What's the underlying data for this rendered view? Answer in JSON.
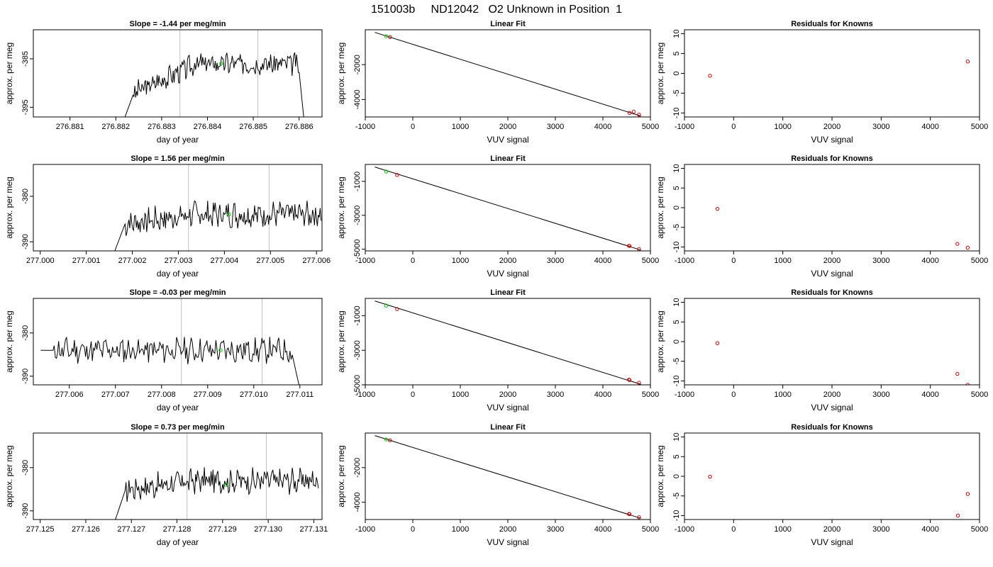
{
  "figure_title": "151003b     ND12042   O2 Unknown in Position  1",
  "colors": {
    "trace": "#000000",
    "green": "#00cc00",
    "red": "#cc0000",
    "vline": "#c0c0c0",
    "fit": "#000000"
  },
  "chart_data": [
    {
      "type": "line",
      "row": 0,
      "col": 0,
      "title": "Slope =  -1.44  per meg/min",
      "xlabel": "day of year",
      "ylabel": "approx. per meg",
      "xlim": [
        276.8802,
        276.8865
      ],
      "ylim": [
        -397,
        -379
      ],
      "xticks": [
        276.881,
        276.882,
        276.883,
        276.884,
        276.885,
        276.886
      ],
      "xtick_labels": [
        "276.881",
        "276.882",
        "276.883",
        "276.884",
        "276.885",
        "276.886"
      ],
      "yticks": [
        -395,
        -385
      ],
      "ytick_labels": [
        "-395",
        "-385"
      ],
      "vlines": [
        276.8834,
        276.8851
      ],
      "trace": {
        "x_start": 276.8822,
        "x_end": 276.8861,
        "n": 200,
        "enter_y": -397,
        "base_y": -392,
        "plateau_y": -386,
        "exit_y": -397,
        "noise": 1.2,
        "seed": 3
      },
      "green_point": [
        276.8843,
        -386
      ]
    },
    {
      "type": "scatter",
      "row": 0,
      "col": 1,
      "title": "Linear Fit",
      "xlabel": "VUV signal",
      "ylabel": "approx. per meg",
      "xlim": [
        -1000,
        5000
      ],
      "ylim": [
        -5000,
        0
      ],
      "xticks": [
        -1000,
        0,
        1000,
        2000,
        3000,
        4000,
        5000
      ],
      "xtick_labels": [
        "-1000",
        "0",
        "1000",
        "2000",
        "3000",
        "4000",
        "5000"
      ],
      "yticks": [
        -4000,
        -2000
      ],
      "ytick_labels": [
        "-4000",
        "-2000"
      ],
      "fit_line": [
        [
          -800,
          -150
        ],
        [
          4800,
          -4950
        ]
      ],
      "red_points": [
        [
          -480,
          -420
        ],
        [
          4560,
          -4770
        ],
        [
          4650,
          -4700
        ],
        [
          4760,
          -4870
        ]
      ],
      "green_points": [
        [
          -560,
          -370
        ]
      ]
    },
    {
      "type": "scatter",
      "row": 0,
      "col": 2,
      "title": "Residuals for Knowns",
      "xlabel": "VUV signal",
      "ylabel": "approx. per meg",
      "xlim": [
        -1000,
        5000
      ],
      "ylim": [
        -11,
        11
      ],
      "xticks": [
        -1000,
        0,
        1000,
        2000,
        3000,
        4000,
        5000
      ],
      "xtick_labels": [
        "-1000",
        "0",
        "1000",
        "2000",
        "3000",
        "4000",
        "5000"
      ],
      "yticks": [
        -10,
        -5,
        0,
        5,
        10
      ],
      "ytick_labels": [
        "-10",
        "-5",
        "0",
        "5",
        "10"
      ],
      "red_points": [
        [
          -480,
          -0.6
        ],
        [
          4760,
          3.0
        ]
      ]
    },
    {
      "type": "line",
      "row": 1,
      "col": 0,
      "title": "Slope =  1.56  per meg/min",
      "xlabel": "day of year",
      "ylabel": "approx. per meg",
      "xlim": [
        276.99985,
        277.00612
      ],
      "ylim": [
        -392,
        -373
      ],
      "xticks": [
        277.0,
        277.001,
        277.002,
        277.003,
        277.004,
        277.005,
        277.006
      ],
      "xtick_labels": [
        "277.000",
        "277.001",
        "277.002",
        "277.003",
        "277.004",
        "277.005",
        "277.006"
      ],
      "yticks": [
        -390,
        -380
      ],
      "ytick_labels": [
        "-390",
        "-380"
      ],
      "vlines": [
        277.00322,
        277.00497
      ],
      "trace": {
        "x_start": 277.00162,
        "x_end": 277.0061,
        "n": 220,
        "enter_y": -392,
        "base_y": -386,
        "plateau_y": -384,
        "exit_y": -384,
        "noise": 1.5,
        "seed": 7
      },
      "green_point": [
        277.0041,
        -384
      ]
    },
    {
      "type": "scatter",
      "row": 1,
      "col": 1,
      "title": "Linear Fit",
      "xlabel": "VUV signal",
      "ylabel": "approx. per meg",
      "xlim": [
        -1000,
        5000
      ],
      "ylim": [
        -5100,
        0
      ],
      "xticks": [
        -1000,
        0,
        1000,
        2000,
        3000,
        4000,
        5000
      ],
      "xtick_labels": [
        "-1000",
        "0",
        "1000",
        "2000",
        "3000",
        "4000",
        "5000"
      ],
      "yticks": [
        -5000,
        -3000,
        -1000
      ],
      "ytick_labels": [
        "-5000",
        "-3000",
        "-1000"
      ],
      "fit_line": [
        [
          -800,
          -150
        ],
        [
          4800,
          -5050
        ]
      ],
      "red_points": [
        [
          -330,
          -620
        ],
        [
          4550,
          -4800
        ],
        [
          4560,
          -4810
        ],
        [
          4760,
          -4990
        ]
      ],
      "green_points": [
        [
          -560,
          -420
        ]
      ]
    },
    {
      "type": "scatter",
      "row": 1,
      "col": 2,
      "title": "Residuals for Knowns",
      "xlabel": "VUV signal",
      "ylabel": "approx. per meg",
      "xlim": [
        -1000,
        5000
      ],
      "ylim": [
        -11,
        11
      ],
      "xticks": [
        -1000,
        0,
        1000,
        2000,
        3000,
        4000,
        5000
      ],
      "xtick_labels": [
        "-1000",
        "0",
        "1000",
        "2000",
        "3000",
        "4000",
        "5000"
      ],
      "yticks": [
        -10,
        -5,
        0,
        5,
        10
      ],
      "ytick_labels": [
        "-10",
        "-5",
        "0",
        "5",
        "10"
      ],
      "red_points": [
        [
          -330,
          -0.3
        ],
        [
          4550,
          -9.2
        ],
        [
          4760,
          -10.2
        ]
      ]
    },
    {
      "type": "line",
      "row": 2,
      "col": 0,
      "title": "Slope =  -0.03  per meg/min",
      "xlabel": "day of year",
      "ylabel": "approx. per meg",
      "xlim": [
        277.00522,
        277.01148
      ],
      "ylim": [
        -392,
        -372
      ],
      "xticks": [
        277.006,
        277.007,
        277.008,
        277.009,
        277.01,
        277.011
      ],
      "xtick_labels": [
        "277.006",
        "277.007",
        "277.008",
        "277.009",
        "277.010",
        "277.011"
      ],
      "yticks": [
        -390,
        -380
      ],
      "ytick_labels": [
        "-390",
        "-380"
      ],
      "vlines": [
        277.00843,
        277.01018
      ],
      "trace": {
        "x_start": 277.00538,
        "x_end": 277.01098,
        "n": 230,
        "enter_y": -384,
        "base_y": -384,
        "plateau_y": -384,
        "exit_y": -392,
        "noise": 1.5,
        "seed": 11
      },
      "green_point": [
        277.00928,
        -384
      ]
    },
    {
      "type": "scatter",
      "row": 2,
      "col": 1,
      "title": "Linear Fit",
      "xlabel": "VUV signal",
      "ylabel": "approx. per meg",
      "xlim": [
        -1000,
        5000
      ],
      "ylim": [
        -5000,
        0
      ],
      "xticks": [
        -1000,
        0,
        1000,
        2000,
        3000,
        4000,
        5000
      ],
      "xtick_labels": [
        "-1000",
        "0",
        "1000",
        "2000",
        "3000",
        "4000",
        "5000"
      ],
      "yticks": [
        -5000,
        -3000,
        -1000
      ],
      "ytick_labels": [
        "-5000",
        "-3000",
        "-1000"
      ],
      "fit_line": [
        [
          -800,
          -150
        ],
        [
          4800,
          -4970
        ]
      ],
      "red_points": [
        [
          -330,
          -620
        ],
        [
          4550,
          -4700
        ],
        [
          4560,
          -4720
        ],
        [
          4760,
          -4880
        ]
      ],
      "green_points": [
        [
          -560,
          -420
        ]
      ]
    },
    {
      "type": "scatter",
      "row": 2,
      "col": 2,
      "title": "Residuals for Knowns",
      "xlabel": "VUV signal",
      "ylabel": "approx. per meg",
      "xlim": [
        -1000,
        5000
      ],
      "ylim": [
        -11,
        11
      ],
      "xticks": [
        -1000,
        0,
        1000,
        2000,
        3000,
        4000,
        5000
      ],
      "xtick_labels": [
        "-1000",
        "0",
        "1000",
        "2000",
        "3000",
        "4000",
        "5000"
      ],
      "yticks": [
        -10,
        -5,
        0,
        5,
        10
      ],
      "ytick_labels": [
        "-10",
        "-5",
        "0",
        "5",
        "10"
      ],
      "red_points": [
        [
          -330,
          -0.4
        ],
        [
          4550,
          -8.2
        ],
        [
          4760,
          -11.0
        ]
      ]
    },
    {
      "type": "line",
      "row": 3,
      "col": 0,
      "title": "Slope =  0.73  per meg/min",
      "xlabel": "day of year",
      "ylabel": "approx. per meg",
      "xlim": [
        277.12485,
        277.13118
      ],
      "ylim": [
        -392,
        -372
      ],
      "xticks": [
        277.125,
        277.126,
        277.127,
        277.128,
        277.129,
        277.13,
        277.131
      ],
      "xtick_labels": [
        "277.125",
        "277.126",
        "277.127",
        "277.128",
        "277.129",
        "277.130",
        "277.131"
      ],
      "yticks": [
        -390,
        -380
      ],
      "ytick_labels": [
        "-390",
        "-380"
      ],
      "vlines": [
        277.12822,
        277.12996
      ],
      "trace": {
        "x_start": 277.12665,
        "x_end": 277.1311,
        "n": 210,
        "enter_y": -392,
        "base_y": -385,
        "plateau_y": -383,
        "exit_y": -383,
        "noise": 1.5,
        "seed": 17
      },
      "green_point": [
        277.12908,
        -384
      ]
    },
    {
      "type": "scatter",
      "row": 3,
      "col": 1,
      "title": "Linear Fit",
      "xlabel": "VUV signal",
      "ylabel": "approx. per meg",
      "xlim": [
        -1000,
        5000
      ],
      "ylim": [
        -5000,
        0
      ],
      "xticks": [
        -1000,
        0,
        1000,
        2000,
        3000,
        4000,
        5000
      ],
      "xtick_labels": [
        "-1000",
        "0",
        "1000",
        "2000",
        "3000",
        "4000",
        "5000"
      ],
      "yticks": [
        -4000,
        -2000
      ],
      "ytick_labels": [
        "-4000",
        "-2000"
      ],
      "fit_line": [
        [
          -800,
          -150
        ],
        [
          4800,
          -4930
        ]
      ],
      "red_points": [
        [
          -480,
          -420
        ],
        [
          4550,
          -4680
        ],
        [
          4560,
          -4690
        ],
        [
          4760,
          -4870
        ]
      ],
      "green_points": [
        [
          -560,
          -370
        ]
      ]
    },
    {
      "type": "scatter",
      "row": 3,
      "col": 2,
      "title": "Residuals for Knowns",
      "xlabel": "VUV signal",
      "ylabel": "approx. per meg",
      "xlim": [
        -1000,
        5000
      ],
      "ylim": [
        -11,
        11
      ],
      "xticks": [
        -1000,
        0,
        1000,
        2000,
        3000,
        4000,
        5000
      ],
      "xtick_labels": [
        "-1000",
        "0",
        "1000",
        "2000",
        "3000",
        "4000",
        "5000"
      ],
      "yticks": [
        -10,
        -5,
        0,
        5,
        10
      ],
      "ytick_labels": [
        "-10",
        "-5",
        "0",
        "5",
        "10"
      ],
      "red_points": [
        [
          -480,
          -0.1
        ],
        [
          4560,
          -10.0
        ],
        [
          4760,
          -4.5
        ]
      ]
    }
  ]
}
